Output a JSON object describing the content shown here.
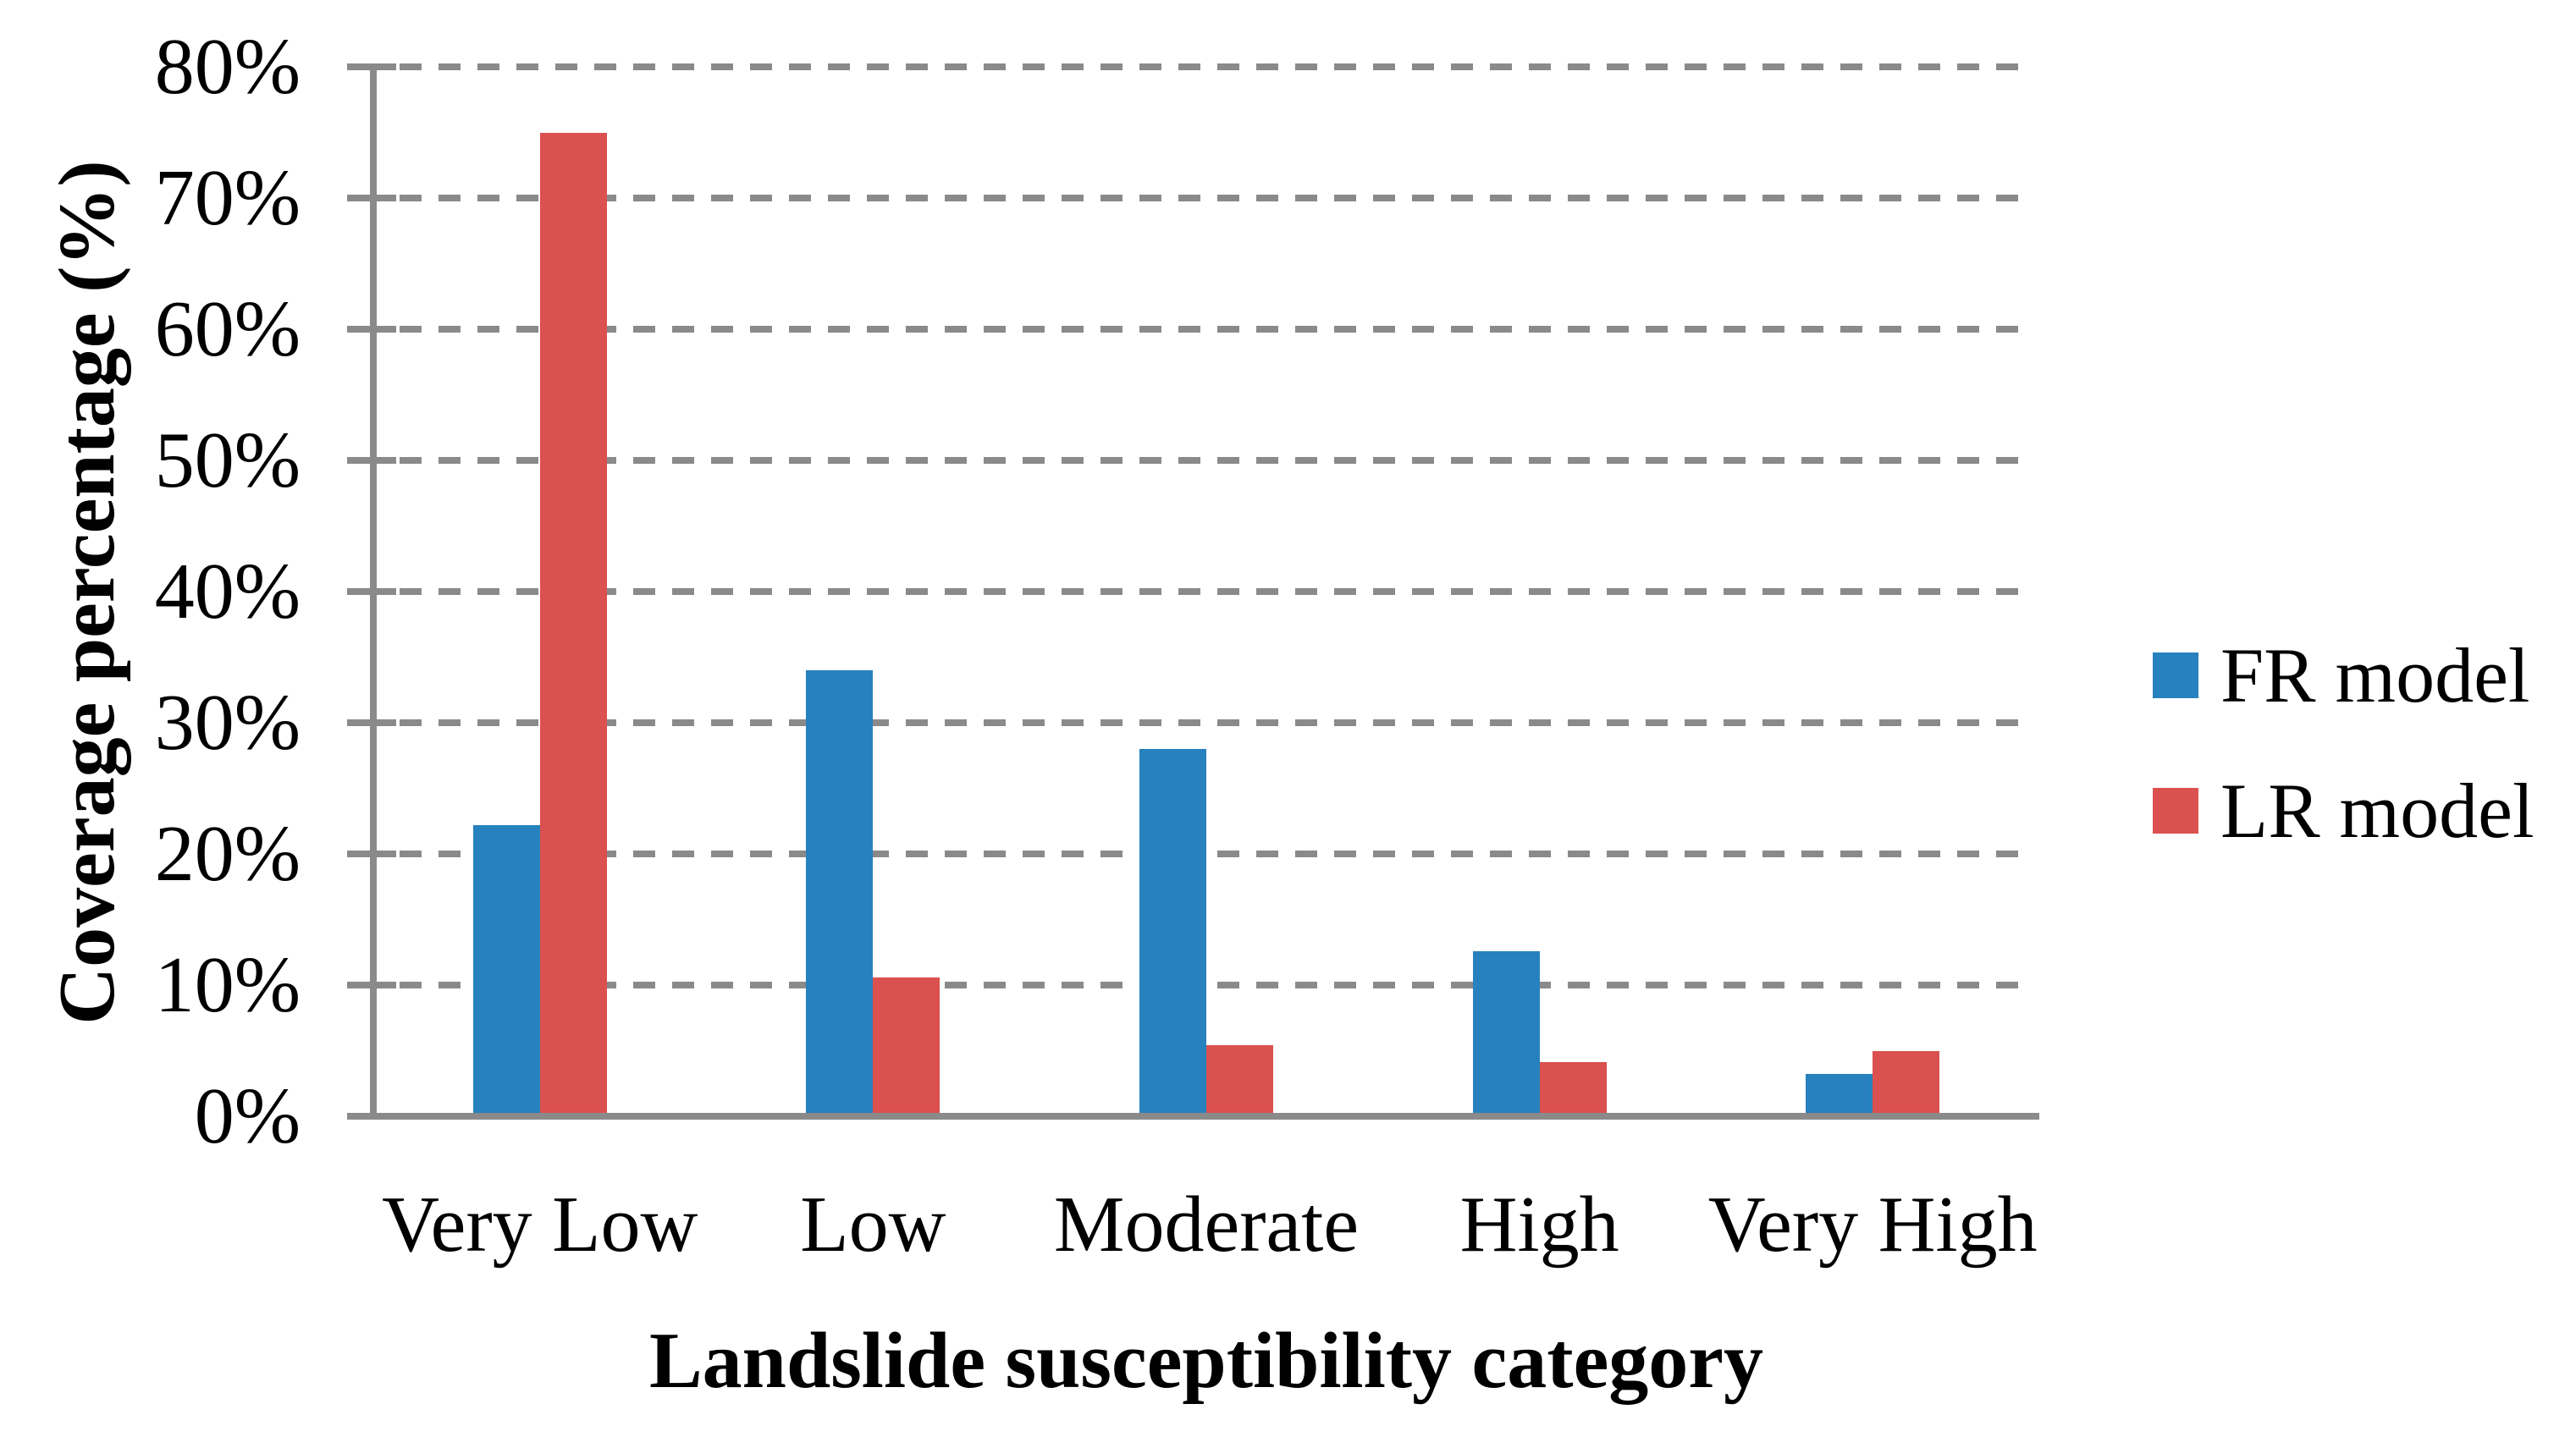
{
  "chart_data": {
    "type": "bar",
    "title": "",
    "xlabel": "Landslide susceptibility category",
    "ylabel": "Coverage percentage (%)",
    "categories": [
      "Very Low",
      "Low",
      "Moderate",
      "High",
      "Very High"
    ],
    "series": [
      {
        "name": "FR model",
        "color": "#2781BE",
        "values": [
          22.2,
          34.0,
          28.0,
          12.6,
          3.2
        ]
      },
      {
        "name": "LR model",
        "color": "#DA5150",
        "values": [
          75.0,
          10.6,
          5.4,
          4.1,
          5.0
        ]
      }
    ],
    "ylim": [
      0,
      80
    ],
    "ytick_step": 10,
    "ytick_labels": [
      "0%",
      "10%",
      "20%",
      "30%",
      "40%",
      "50%",
      "60%",
      "70%",
      "80%"
    ],
    "grid": "horizontal-dashed",
    "legend_position": "right"
  },
  "colors": {
    "axis": "#8A8A8A",
    "gridline": "#8A8A8A",
    "text": "#000000",
    "background": "#FFFFFF"
  }
}
